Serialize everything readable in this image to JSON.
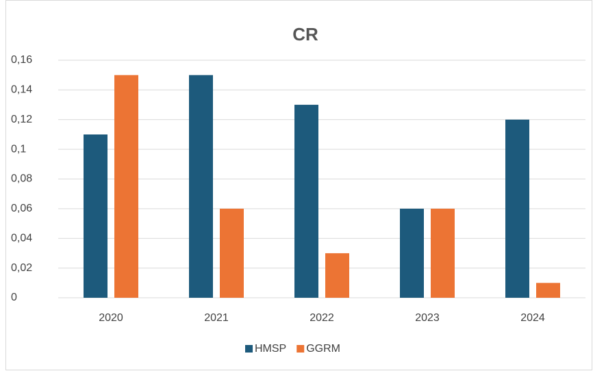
{
  "chart_data": {
    "type": "bar",
    "title": "CR",
    "categories": [
      "2020",
      "2021",
      "2022",
      "2023",
      "2024"
    ],
    "series": [
      {
        "name": "HMSP",
        "color": "#1d5a7c",
        "values": [
          0.11,
          0.15,
          0.13,
          0.06,
          0.12
        ]
      },
      {
        "name": "GGRM",
        "color": "#ec7434",
        "values": [
          0.15,
          0.06,
          0.03,
          0.06,
          0.01
        ]
      }
    ],
    "ylim": [
      0,
      0.16
    ],
    "yticks": [
      0,
      {
        "value": 0.02,
        "label": "0,02"
      },
      {
        "value": 0.04,
        "label": "0,04"
      },
      {
        "value": 0.06,
        "label": "0,06"
      },
      {
        "value": 0.08,
        "label": "0,08"
      },
      {
        "value": 0.1,
        "label": "0,1"
      },
      {
        "value": 0.12,
        "label": "0,12"
      },
      {
        "value": 0.14,
        "label": "0,14"
      },
      {
        "value": 0.16,
        "label": "0,16"
      }
    ],
    "grid": true,
    "legend": "bottom"
  }
}
